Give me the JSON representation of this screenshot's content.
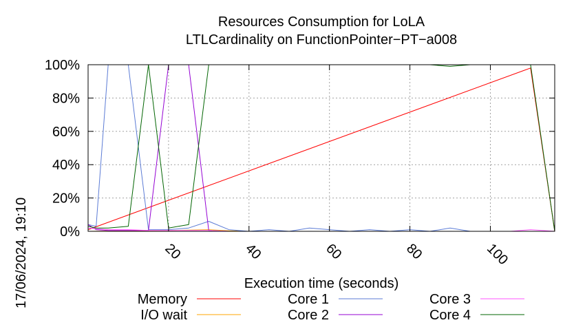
{
  "chart_data": {
    "type": "line",
    "title": "Resources Consumption for LoLA",
    "subtitle": "LTLCardinality on FunctionPointer−PT−a008",
    "xlabel": "Execution time (seconds)",
    "ylabel": "",
    "xlim": [
      0,
      116
    ],
    "ylim": [
      0,
      100
    ],
    "x_ticks": [
      20,
      40,
      60,
      80,
      100
    ],
    "x_tick_labels": [
      "20",
      "40",
      "60",
      "80",
      "100"
    ],
    "y_ticks": [
      0,
      20,
      40,
      60,
      80,
      100
    ],
    "y_tick_labels": [
      "0%",
      "20%",
      "40%",
      "60%",
      "80%",
      "100%"
    ],
    "grid": true,
    "legend_position": "bottom",
    "series": [
      {
        "name": "Memory",
        "color": "#ff0000",
        "points": [
          [
            0,
            1
          ],
          [
            110,
            98
          ],
          [
            116,
            0
          ]
        ]
      },
      {
        "name": "I/O wait",
        "color": "#ffa500",
        "points": [
          [
            0,
            0
          ],
          [
            10,
            0.3
          ],
          [
            20,
            0.5
          ],
          [
            30,
            1
          ],
          [
            35,
            0.3
          ],
          [
            40,
            0
          ],
          [
            116,
            0
          ]
        ]
      },
      {
        "name": "Core 1",
        "color": "#5b7bd5",
        "points": [
          [
            0,
            4
          ],
          [
            2,
            3
          ],
          [
            5,
            100
          ],
          [
            10,
            100
          ],
          [
            15,
            1
          ],
          [
            20,
            1
          ],
          [
            25,
            2
          ],
          [
            30,
            6
          ],
          [
            35,
            1
          ],
          [
            40,
            0
          ],
          [
            45,
            1
          ],
          [
            50,
            0
          ],
          [
            55,
            2
          ],
          [
            60,
            1
          ],
          [
            65,
            0
          ],
          [
            70,
            1
          ],
          [
            75,
            0
          ],
          [
            80,
            1
          ],
          [
            85,
            0
          ],
          [
            90,
            2
          ],
          [
            95,
            0
          ],
          [
            100,
            0
          ],
          [
            105,
            0
          ],
          [
            110,
            0
          ],
          [
            116,
            0
          ]
        ]
      },
      {
        "name": "Core 2",
        "color": "#9400d3",
        "points": [
          [
            0,
            4
          ],
          [
            2,
            1
          ],
          [
            5,
            0.5
          ],
          [
            10,
            0.5
          ],
          [
            15,
            0.5
          ],
          [
            20,
            100
          ],
          [
            25,
            100
          ],
          [
            30,
            0.5
          ],
          [
            35,
            0
          ],
          [
            40,
            0
          ],
          [
            116,
            0
          ]
        ]
      },
      {
        "name": "Core 3",
        "color": "#ff55ff",
        "points": [
          [
            0,
            2
          ],
          [
            5,
            1
          ],
          [
            10,
            1
          ],
          [
            15,
            0.5
          ],
          [
            20,
            0.5
          ],
          [
            25,
            0.5
          ],
          [
            30,
            0.5
          ],
          [
            35,
            0
          ],
          [
            105,
            0
          ],
          [
            110,
            1
          ],
          [
            116,
            0
          ]
        ]
      },
      {
        "name": "Core 4",
        "color": "#006400",
        "points": [
          [
            0,
            3
          ],
          [
            2,
            2
          ],
          [
            5,
            2
          ],
          [
            10,
            3
          ],
          [
            15,
            100
          ],
          [
            20,
            2
          ],
          [
            25,
            4
          ],
          [
            30,
            100
          ],
          [
            40,
            100
          ],
          [
            50,
            100
          ],
          [
            60,
            100
          ],
          [
            70,
            100
          ],
          [
            80,
            100
          ],
          [
            85,
            100
          ],
          [
            90,
            99
          ],
          [
            95,
            100
          ],
          [
            100,
            100
          ],
          [
            105,
            100
          ],
          [
            110,
            100
          ],
          [
            116,
            0
          ]
        ]
      }
    ]
  },
  "timestamp": "17/06/2024, 19:10"
}
